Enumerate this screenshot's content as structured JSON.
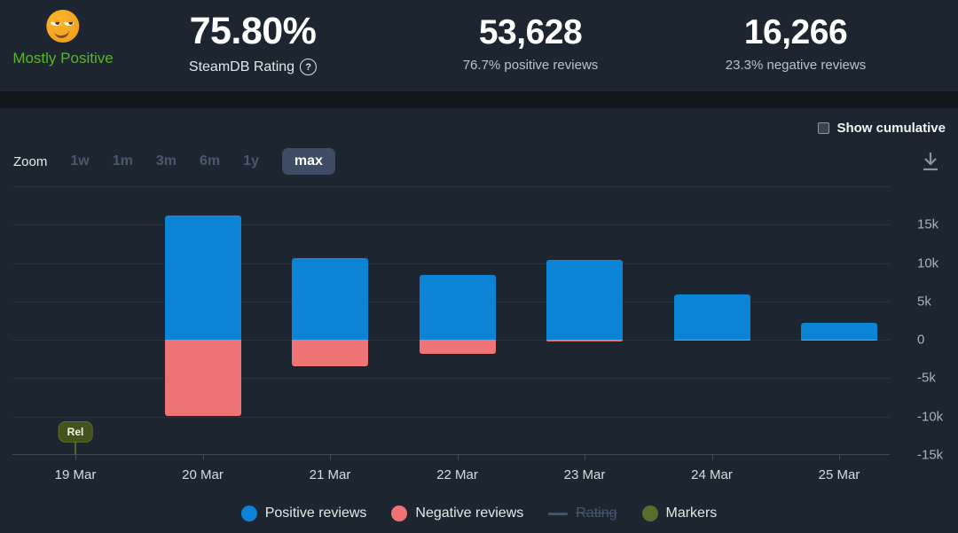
{
  "header": {
    "summary": {
      "emoji": "smirking-face",
      "label": "Mostly Positive",
      "label_color": "#5cb32e"
    },
    "stats": [
      {
        "value": "75.80%",
        "sub": "SteamDB Rating",
        "help_icon": "?"
      },
      {
        "value": "53,628",
        "sub": "76.7% positive reviews"
      },
      {
        "value": "16,266",
        "sub": "23.3% negative reviews"
      }
    ]
  },
  "toolbar": {
    "show_cumulative_label": "Show cumulative",
    "show_cumulative_checked": false,
    "zoom_label": "Zoom",
    "zoom_options": [
      {
        "label": "1w",
        "active": false
      },
      {
        "label": "1m",
        "active": false
      },
      {
        "label": "3m",
        "active": false
      },
      {
        "label": "6m",
        "active": false
      },
      {
        "label": "1y",
        "active": false
      },
      {
        "label": "max",
        "active": true
      }
    ]
  },
  "chart_data": {
    "type": "bar",
    "stacked": true,
    "grid": true,
    "categories": [
      "19 Mar",
      "20 Mar",
      "21 Mar",
      "22 Mar",
      "23 Mar",
      "24 Mar",
      "25 Mar"
    ],
    "series": [
      {
        "name": "Positive reviews",
        "color": "#0b84d6",
        "values": [
          0,
          16200,
          10700,
          8500,
          10400,
          5900,
          2200
        ]
      },
      {
        "name": "Negative reviews",
        "color": "#ee7374",
        "values": [
          0,
          -9900,
          -3400,
          -1850,
          -250,
          -150,
          -60
        ]
      }
    ],
    "ylim": [
      -15000,
      20000
    ],
    "grid_step": 5000,
    "yticks": [
      {
        "value": 15000,
        "label": "15k"
      },
      {
        "value": 10000,
        "label": "10k"
      },
      {
        "value": 5000,
        "label": "5k"
      },
      {
        "value": 0,
        "label": "0"
      },
      {
        "value": -5000,
        "label": "-5k"
      },
      {
        "value": -10000,
        "label": "-10k"
      },
      {
        "value": -15000,
        "label": "-15k"
      }
    ],
    "markers": [
      {
        "label": "Rel",
        "category_index": 0
      }
    ],
    "legend_position": "bottom"
  },
  "legend": [
    {
      "label": "Positive reviews",
      "swatch": "dot",
      "color": "#0b84d6",
      "enabled": true
    },
    {
      "label": "Negative reviews",
      "swatch": "dot",
      "color": "#ee7374",
      "enabled": true
    },
    {
      "label": "Rating",
      "swatch": "line",
      "color": "#46556e",
      "enabled": false
    },
    {
      "label": "Markers",
      "swatch": "dot",
      "color": "#5a6c2b",
      "enabled": true
    }
  ]
}
